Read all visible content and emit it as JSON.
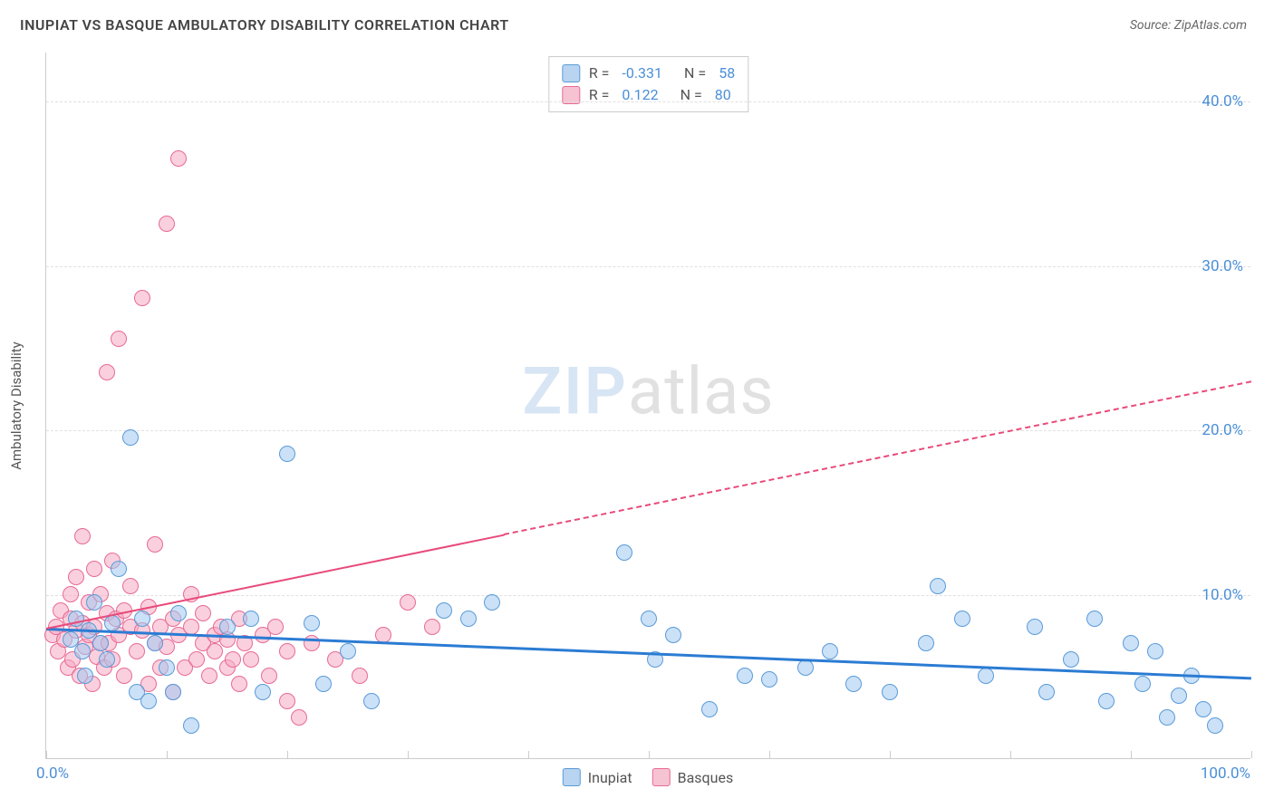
{
  "header": {
    "title": "INUPIAT VS BASQUE AMBULATORY DISABILITY CORRELATION CHART",
    "source": "Source: ZipAtlas.com"
  },
  "chart": {
    "type": "scatter",
    "y_axis_title": "Ambulatory Disability",
    "xlim": [
      0,
      100
    ],
    "ylim": [
      0,
      43
    ],
    "x_tick_positions": [
      0,
      10,
      20,
      30,
      40,
      50,
      60,
      70,
      80,
      90,
      100
    ],
    "x_min_label": "0.0%",
    "x_max_label": "100.0%",
    "y_ticks": [
      {
        "v": 10,
        "label": "10.0%"
      },
      {
        "v": 20,
        "label": "20.0%"
      },
      {
        "v": 30,
        "label": "30.0%"
      },
      {
        "v": 40,
        "label": "40.0%"
      }
    ],
    "grid_color": "#e0e0e0",
    "axis_color": "#cccccc",
    "background_color": "#ffffff",
    "label_color": "#4a8fd8",
    "title_color": "#444444",
    "point_radius": 9,
    "point_stroke_width": 1.2,
    "series": [
      {
        "name": "Inupiat",
        "fill": "rgba(160, 200, 240, 0.55)",
        "stroke": "#5a9bd8",
        "swatch_fill": "#b8d4f0",
        "swatch_border": "#5a9bd8",
        "r_value": "-0.331",
        "n_value": "58",
        "trend": {
          "x1": 0,
          "y1": 8.0,
          "x2": 100,
          "y2": 5.0,
          "solid_until": 100,
          "color": "#2b7cd3",
          "width": 2.5
        },
        "points": [
          [
            2,
            7.2
          ],
          [
            2.5,
            8.5
          ],
          [
            3,
            6.5
          ],
          [
            3.2,
            5.0
          ],
          [
            3.5,
            7.8
          ],
          [
            4,
            9.5
          ],
          [
            4.5,
            7.0
          ],
          [
            5,
            6.0
          ],
          [
            5.5,
            8.2
          ],
          [
            6,
            11.5
          ],
          [
            7,
            19.5
          ],
          [
            7.5,
            4.0
          ],
          [
            8,
            8.5
          ],
          [
            8.5,
            3.5
          ],
          [
            9,
            7.0
          ],
          [
            10,
            5.5
          ],
          [
            10.5,
            4.0
          ],
          [
            11,
            8.8
          ],
          [
            12,
            2.0
          ],
          [
            15,
            8.0
          ],
          [
            17,
            8.5
          ],
          [
            18,
            4.0
          ],
          [
            20,
            18.5
          ],
          [
            22,
            8.2
          ],
          [
            23,
            4.5
          ],
          [
            25,
            6.5
          ],
          [
            27,
            3.5
          ],
          [
            33,
            9.0
          ],
          [
            35,
            8.5
          ],
          [
            37,
            9.5
          ],
          [
            48,
            12.5
          ],
          [
            50,
            8.5
          ],
          [
            50.5,
            6.0
          ],
          [
            52,
            7.5
          ],
          [
            55,
            3.0
          ],
          [
            58,
            5.0
          ],
          [
            60,
            4.8
          ],
          [
            63,
            5.5
          ],
          [
            65,
            6.5
          ],
          [
            67,
            4.5
          ],
          [
            70,
            4.0
          ],
          [
            73,
            7.0
          ],
          [
            74,
            10.5
          ],
          [
            76,
            8.5
          ],
          [
            78,
            5.0
          ],
          [
            82,
            8.0
          ],
          [
            83,
            4.0
          ],
          [
            85,
            6.0
          ],
          [
            87,
            8.5
          ],
          [
            88,
            3.5
          ],
          [
            90,
            7.0
          ],
          [
            91,
            4.5
          ],
          [
            92,
            6.5
          ],
          [
            93,
            2.5
          ],
          [
            94,
            3.8
          ],
          [
            95,
            5.0
          ],
          [
            96,
            3.0
          ],
          [
            97,
            2.0
          ]
        ]
      },
      {
        "name": "Basques",
        "fill": "rgba(245, 170, 195, 0.55)",
        "stroke": "#e86a95",
        "swatch_fill": "#f6c3d3",
        "swatch_border": "#e86a95",
        "r_value": "0.122",
        "n_value": "80",
        "trend": {
          "x1": 0,
          "y1": 8.0,
          "x2": 100,
          "y2": 23.0,
          "solid_until": 38,
          "color": "#e84a7a",
          "width": 2
        },
        "points": [
          [
            0.5,
            7.5
          ],
          [
            0.8,
            8.0
          ],
          [
            1,
            6.5
          ],
          [
            1.2,
            9.0
          ],
          [
            1.5,
            7.2
          ],
          [
            1.8,
            5.5
          ],
          [
            2,
            8.5
          ],
          [
            2,
            10.0
          ],
          [
            2.2,
            6.0
          ],
          [
            2.5,
            7.8
          ],
          [
            2.5,
            11.0
          ],
          [
            2.8,
            5.0
          ],
          [
            3,
            8.2
          ],
          [
            3,
            13.5
          ],
          [
            3.2,
            6.8
          ],
          [
            3.5,
            7.5
          ],
          [
            3.5,
            9.5
          ],
          [
            3.8,
            4.5
          ],
          [
            4,
            8.0
          ],
          [
            4,
            11.5
          ],
          [
            4.2,
            6.2
          ],
          [
            4.5,
            7.0
          ],
          [
            4.5,
            10.0
          ],
          [
            4.8,
            5.5
          ],
          [
            5,
            8.8
          ],
          [
            5,
            23.5
          ],
          [
            5.2,
            7.0
          ],
          [
            5.5,
            6.0
          ],
          [
            5.5,
            12.0
          ],
          [
            5.8,
            8.5
          ],
          [
            6,
            7.5
          ],
          [
            6,
            25.5
          ],
          [
            6.5,
            9.0
          ],
          [
            6.5,
            5.0
          ],
          [
            7,
            8.0
          ],
          [
            7,
            10.5
          ],
          [
            7.5,
            6.5
          ],
          [
            8,
            7.8
          ],
          [
            8,
            28.0
          ],
          [
            8.5,
            9.2
          ],
          [
            8.5,
            4.5
          ],
          [
            9,
            7.0
          ],
          [
            9,
            13.0
          ],
          [
            9.5,
            8.0
          ],
          [
            9.5,
            5.5
          ],
          [
            10,
            6.8
          ],
          [
            10,
            32.5
          ],
          [
            10.5,
            8.5
          ],
          [
            10.5,
            4.0
          ],
          [
            11,
            36.5
          ],
          [
            11,
            7.5
          ],
          [
            11.5,
            5.5
          ],
          [
            12,
            8.0
          ],
          [
            12,
            10.0
          ],
          [
            12.5,
            6.0
          ],
          [
            13,
            8.8
          ],
          [
            13,
            7.0
          ],
          [
            13.5,
            5.0
          ],
          [
            14,
            7.5
          ],
          [
            14,
            6.5
          ],
          [
            14.5,
            8.0
          ],
          [
            15,
            5.5
          ],
          [
            15,
            7.2
          ],
          [
            15.5,
            6.0
          ],
          [
            16,
            8.5
          ],
          [
            16,
            4.5
          ],
          [
            16.5,
            7.0
          ],
          [
            17,
            6.0
          ],
          [
            18,
            7.5
          ],
          [
            18.5,
            5.0
          ],
          [
            19,
            8.0
          ],
          [
            20,
            6.5
          ],
          [
            20,
            3.5
          ],
          [
            21,
            2.5
          ],
          [
            22,
            7.0
          ],
          [
            24,
            6.0
          ],
          [
            26,
            5.0
          ],
          [
            28,
            7.5
          ],
          [
            30,
            9.5
          ],
          [
            32,
            8.0
          ]
        ]
      }
    ],
    "legend_bottom": [
      {
        "label": "Inupiat",
        "swatch_fill": "#b8d4f0",
        "swatch_border": "#5a9bd8"
      },
      {
        "label": "Basques",
        "swatch_fill": "#f6c3d3",
        "swatch_border": "#e86a95"
      }
    ]
  },
  "watermark": {
    "part1": "ZIP",
    "part2": "atlas"
  }
}
